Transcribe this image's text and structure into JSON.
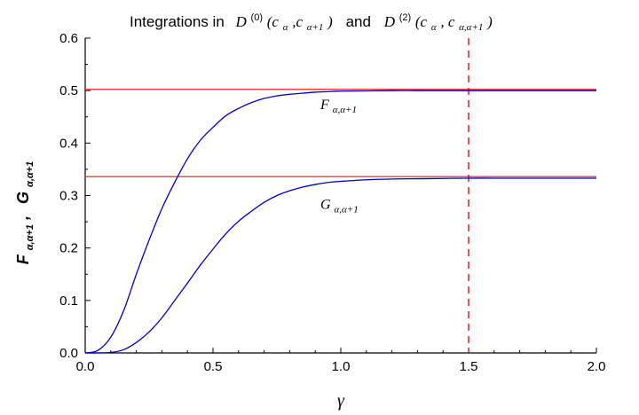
{
  "chart_data": {
    "type": "line",
    "title": {
      "prefix": "Integrations in",
      "d0_base": "D",
      "d0_sup": "(0)",
      "d0_args": "(c",
      "d0_sub1": "α",
      "d0_mid": ",c",
      "d0_sub2": "α+1",
      "d0_close": ")",
      "conj": "and",
      "d2_base": "D",
      "d2_sup": "(2)",
      "d2_args": "(c",
      "d2_sub1": "α",
      "d2_mid": ", c",
      "d2_sub2": "α,α+1",
      "d2_close": ")"
    },
    "xlabel": "γ",
    "ylabel": {
      "f_base": "F",
      "f_sub": "α,α+1",
      "sep": ",",
      "g_base": "G",
      "g_sub": "α,α+1"
    },
    "xlim": [
      0.0,
      2.0
    ],
    "ylim": [
      0.0,
      0.6
    ],
    "xticks": [
      "0.0",
      "0.5",
      "1.0",
      "1.5",
      "2.0"
    ],
    "yticks": [
      "0.0",
      "0.1",
      "0.2",
      "0.3",
      "0.4",
      "0.5",
      "0.6"
    ],
    "series": [
      {
        "name": "F_{α,α+1}",
        "color": "#0000cc",
        "x": [
          0.0,
          0.05,
          0.1,
          0.15,
          0.2,
          0.25,
          0.3,
          0.35,
          0.4,
          0.45,
          0.5,
          0.55,
          0.6,
          0.65,
          0.7,
          0.75,
          0.8,
          0.85,
          0.9,
          0.95,
          1.0,
          1.1,
          1.2,
          1.3,
          1.4,
          1.5,
          1.6,
          1.7,
          1.8,
          1.9,
          2.0
        ],
        "y": [
          0.0,
          0.005,
          0.03,
          0.08,
          0.15,
          0.215,
          0.275,
          0.325,
          0.37,
          0.405,
          0.43,
          0.452,
          0.466,
          0.477,
          0.485,
          0.49,
          0.493,
          0.495,
          0.497,
          0.498,
          0.499,
          0.4995,
          0.5,
          0.5,
          0.5,
          0.5,
          0.5,
          0.5,
          0.5,
          0.5,
          0.5
        ]
      },
      {
        "name": "G_{α,α+1}",
        "color": "#0000cc",
        "x": [
          0.0,
          0.05,
          0.1,
          0.15,
          0.2,
          0.25,
          0.3,
          0.35,
          0.4,
          0.45,
          0.5,
          0.55,
          0.6,
          0.65,
          0.7,
          0.75,
          0.8,
          0.85,
          0.9,
          0.95,
          1.0,
          1.1,
          1.2,
          1.3,
          1.4,
          1.5,
          1.6,
          1.7,
          1.8,
          1.9,
          2.0
        ],
        "y": [
          0.0,
          0.0,
          0.001,
          0.006,
          0.02,
          0.04,
          0.067,
          0.1,
          0.133,
          0.167,
          0.198,
          0.227,
          0.251,
          0.27,
          0.287,
          0.3,
          0.309,
          0.316,
          0.321,
          0.325,
          0.327,
          0.33,
          0.3315,
          0.332,
          0.3325,
          0.333,
          0.333,
          0.333,
          0.333,
          0.333,
          0.333
        ]
      }
    ],
    "hlines": [
      {
        "y": 0.5025,
        "color": "#ff3333"
      },
      {
        "y": 0.336,
        "color": "#ff3333"
      }
    ],
    "vline": {
      "x": 1.5,
      "color": "#cc0000",
      "style": "dashed"
    },
    "annotations": [
      {
        "base": "F",
        "sub": "α,α+1",
        "x": 0.92,
        "y": 0.465
      },
      {
        "base": "G",
        "sub": "α,α+1",
        "x": 0.92,
        "y": 0.275
      }
    ],
    "grid": false,
    "legend": "none"
  }
}
